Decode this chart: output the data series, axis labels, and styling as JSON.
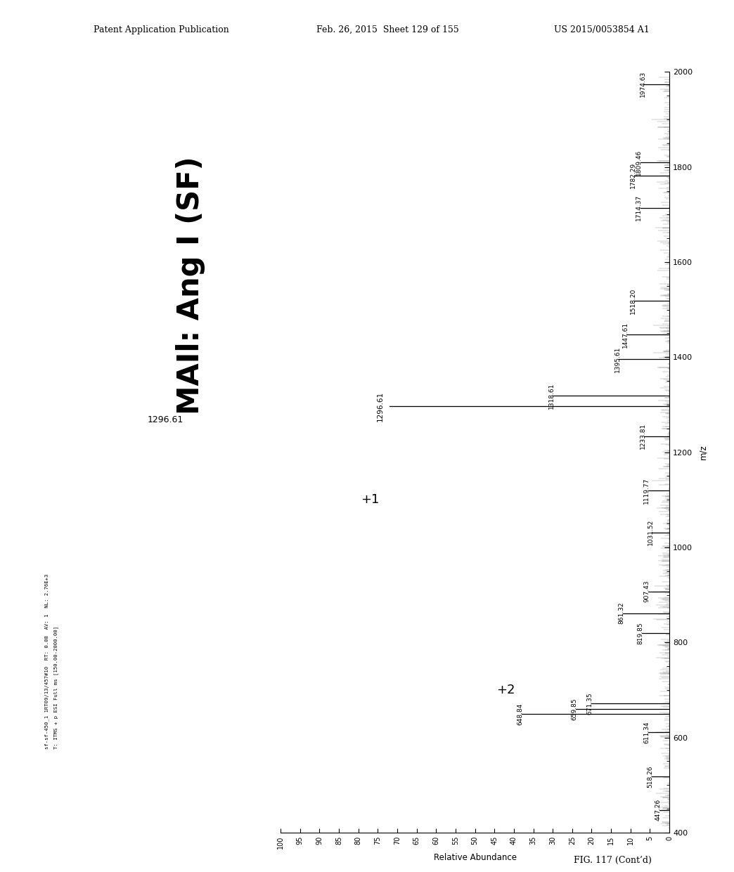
{
  "title": "MAIl: Ang I (SF)",
  "header_left": "Patent Application Publication",
  "header_center": "Feb. 26, 2015  Sheet 129 of 155",
  "header_right": "US 2015/0053854 A1",
  "fig_label": "FIG. 117 (Cont’d)",
  "mz_axis_label": "m/z",
  "abundance_axis_label": "Relative Abundance",
  "mz_min": 400,
  "mz_max": 2000,
  "ab_min": 0,
  "ab_max": 100,
  "ab_ticks": [
    0,
    5,
    10,
    15,
    20,
    25,
    30,
    35,
    40,
    45,
    50,
    55,
    60,
    65,
    70,
    75,
    80,
    85,
    90,
    95,
    100
  ],
  "mz_ticks": [
    400,
    600,
    800,
    1000,
    1200,
    1400,
    1600,
    1800,
    2000
  ],
  "instrument_line1": "sf-sf-450_1 1RT09/13/457#10  RT: 0.08  AV: 1  NL: 2.76E+3",
  "instrument_line2": "T: ITMS + p ESI Full ms [150.00-2000.00]",
  "peaks": [
    {
      "mz": 447.26,
      "ab": 2.5,
      "label": "447.26",
      "lshow": true
    },
    {
      "mz": 518.26,
      "ab": 4.5,
      "label": "518.26",
      "lshow": true
    },
    {
      "mz": 611.34,
      "ab": 5.5,
      "label": "611.34",
      "lshow": true
    },
    {
      "mz": 648.84,
      "ab": 38.0,
      "label": "648.84",
      "lshow": true
    },
    {
      "mz": 659.85,
      "ab": 24.0,
      "label": "659.85",
      "lshow": true
    },
    {
      "mz": 671.35,
      "ab": 20.0,
      "label": "671.35",
      "lshow": true
    },
    {
      "mz": 819.85,
      "ab": 7.0,
      "label": "819.85",
      "lshow": true
    },
    {
      "mz": 861.32,
      "ab": 12.0,
      "label": "861.32",
      "lshow": true
    },
    {
      "mz": 907.43,
      "ab": 5.5,
      "label": "907.43",
      "lshow": true
    },
    {
      "mz": 1031.52,
      "ab": 4.5,
      "label": "1031.52",
      "lshow": true
    },
    {
      "mz": 1119.77,
      "ab": 5.5,
      "label": "1119.77",
      "lshow": true
    },
    {
      "mz": 1233.81,
      "ab": 6.5,
      "label": "1233.81",
      "lshow": true
    },
    {
      "mz": 1296.61,
      "ab": 72.0,
      "label": "1296.61",
      "lshow": true
    },
    {
      "mz": 1318.61,
      "ab": 30.0,
      "label": "1318.61",
      "lshow": true
    },
    {
      "mz": 1395.61,
      "ab": 13.0,
      "label": "1395.61",
      "lshow": true
    },
    {
      "mz": 1447.61,
      "ab": 11.0,
      "label": "1447.61",
      "lshow": true
    },
    {
      "mz": 1518.2,
      "ab": 9.0,
      "label": "1518.20",
      "lshow": true
    },
    {
      "mz": 1714.37,
      "ab": 7.5,
      "label": "1714.37",
      "lshow": true
    },
    {
      "mz": 1782.29,
      "ab": 9.0,
      "label": "1782.29",
      "lshow": true
    },
    {
      "mz": 1809.46,
      "ab": 7.5,
      "label": "1809.46",
      "lshow": true
    },
    {
      "mz": 1974.63,
      "ab": 6.5,
      "label": "1974.63",
      "lshow": true
    }
  ],
  "charge2_mz": 700,
  "charge2_ab": 40,
  "charge1_mz": 1100,
  "charge1_ab": 74,
  "mz1296_label_ab": 74,
  "background_color": "#ffffff"
}
